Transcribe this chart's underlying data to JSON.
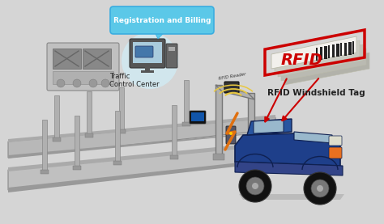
{
  "bg_color": "#d5d5d5",
  "car_color": "#1e3f8a",
  "car_dark": "#0f2050",
  "car_window": "#99b8cc",
  "car_wheel": "#111111",
  "car_hubcap": "#777777",
  "car_orange": "#e87020",
  "pole_color": "#b0b0b0",
  "pole_edge": "#888888",
  "road_top": "#b8b8b8",
  "road_edge": "#888888",
  "gate_color": "#b0b0b0",
  "gate_edge": "#777777",
  "reader_color": "#333333",
  "signal_color": "#e8c840",
  "lightning_color": "#e07010",
  "rfid_border": "#cc0000",
  "rfid_text_color": "#cc0000",
  "rfid_text": "RFID",
  "rfid_card_bg": "#f0ede8",
  "rfid_card_shadow": "#d0cdc8",
  "rfid_barcode": "#222222",
  "rfid_label": "RFID Windshield Tag",
  "reg_label": "Registration and Billing",
  "reg_bubble": "#5bc8e8",
  "reg_bubble_edge": "#3aade0",
  "tcc_label": "Traffic\nControl Center",
  "reader_label": "RFID Reader",
  "arrow_color": "#cc0000",
  "equipment_color": "#555566",
  "screen_color": "#2244aa",
  "display_color": "#111111"
}
